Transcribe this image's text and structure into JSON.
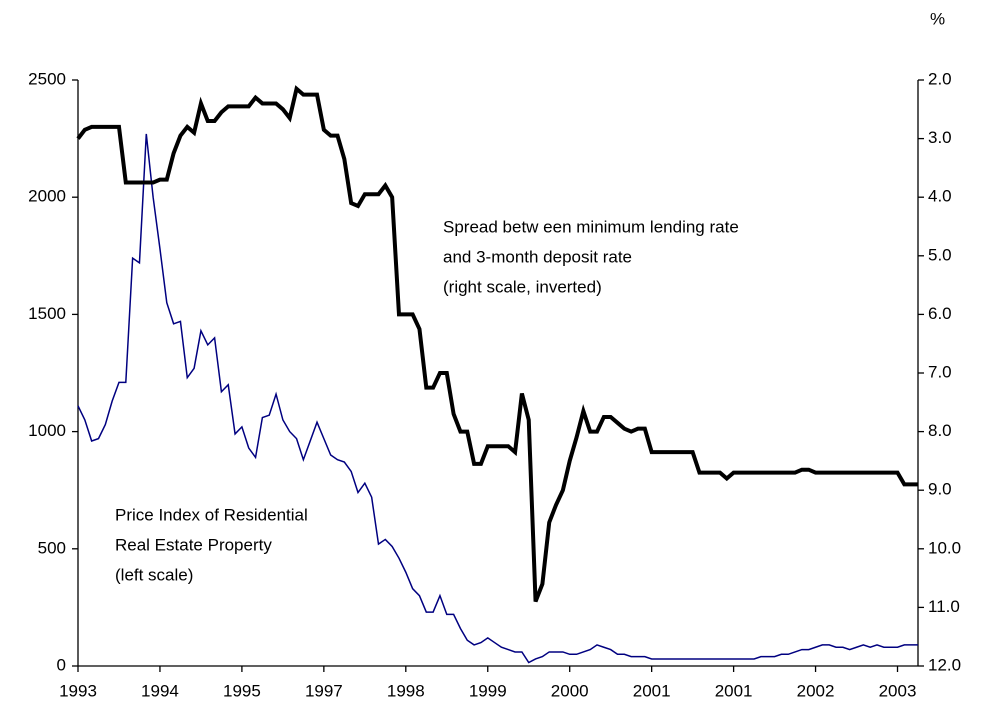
{
  "chart_data": {
    "type": "line",
    "y2_label": "%",
    "categories": [
      "1993",
      null,
      null,
      null,
      null,
      null,
      null,
      null,
      null,
      null,
      null,
      null,
      "1994",
      null,
      null,
      null,
      null,
      null,
      null,
      null,
      null,
      null,
      null,
      null,
      "1995",
      null,
      null,
      null,
      null,
      null,
      null,
      null,
      null,
      null,
      null,
      null,
      "1997",
      null,
      null,
      null,
      null,
      null,
      null,
      null,
      null,
      null,
      null,
      null,
      "1998",
      null,
      null,
      null,
      null,
      null,
      null,
      null,
      null,
      null,
      null,
      null,
      "1999",
      null,
      null,
      null,
      null,
      null,
      null,
      null,
      null,
      null,
      null,
      null,
      "2000",
      null,
      null,
      null,
      null,
      null,
      null,
      null,
      null,
      null,
      null,
      null,
      "2001",
      null,
      null,
      null,
      null,
      null,
      null,
      null,
      null,
      null,
      null,
      null,
      "2001",
      null,
      null,
      null,
      null,
      null,
      null,
      null,
      null,
      null,
      null,
      null,
      "2002",
      null,
      null,
      null,
      null,
      null,
      null,
      null,
      null,
      null,
      null,
      null,
      "2003",
      null,
      null,
      null
    ],
    "series": [
      {
        "name": "Price Index of Residential Real Estate Property (left scale)",
        "color": "#000080",
        "axis": "y",
        "values": [
          1110,
          1050,
          960,
          970,
          1030,
          1130,
          1210,
          1210,
          1740,
          1720,
          2270,
          2000,
          1780,
          1550,
          1460,
          1470,
          1230,
          1270,
          1430,
          1370,
          1400,
          1170,
          1200,
          990,
          1020,
          930,
          890,
          1060,
          1070,
          1160,
          1050,
          1000,
          970,
          880,
          960,
          1040,
          970,
          900,
          880,
          870,
          830,
          740,
          780,
          720,
          520,
          540,
          510,
          460,
          400,
          330,
          300,
          230,
          230,
          300,
          220,
          220,
          160,
          110,
          90,
          100,
          120,
          100,
          80,
          70,
          60,
          60,
          15,
          30,
          40,
          60,
          60,
          60,
          50,
          50,
          60,
          70,
          90,
          80,
          70,
          50,
          50,
          40,
          40,
          40,
          30,
          30,
          30,
          30,
          30,
          30,
          30,
          30,
          30,
          30,
          30,
          30,
          30,
          30,
          30,
          30,
          40,
          40,
          40,
          50,
          50,
          60,
          70,
          70,
          80,
          90,
          90,
          80,
          80,
          70,
          80,
          90,
          80,
          90,
          80,
          80,
          80,
          90,
          90,
          90
        ]
      },
      {
        "name": "Spread between minimum lending rate and 3-month deposit rate (right scale, inverted)",
        "color": "#000000",
        "axis": "y2",
        "values": [
          3.0,
          2.85,
          2.8,
          2.8,
          2.8,
          2.8,
          2.8,
          3.75,
          3.75,
          3.75,
          3.75,
          3.75,
          3.7,
          3.7,
          3.25,
          2.95,
          2.8,
          2.9,
          2.4,
          2.7,
          2.7,
          2.55,
          2.45,
          2.45,
          2.45,
          2.45,
          2.3,
          2.4,
          2.4,
          2.4,
          2.5,
          2.65,
          2.15,
          2.25,
          2.25,
          2.25,
          2.85,
          2.95,
          2.95,
          3.35,
          4.1,
          4.15,
          3.95,
          3.95,
          3.95,
          3.8,
          4.0,
          6.0,
          6.0,
          6.0,
          6.25,
          7.25,
          7.25,
          7.0,
          7.0,
          7.7,
          8.0,
          8.0,
          8.55,
          8.55,
          8.25,
          8.25,
          8.25,
          8.25,
          8.35,
          7.35,
          7.8,
          10.9,
          10.6,
          9.55,
          9.25,
          9.0,
          8.5,
          8.1,
          7.65,
          8.0,
          8.0,
          7.75,
          7.75,
          7.85,
          7.95,
          8.0,
          7.95,
          7.95,
          8.35,
          8.35,
          8.35,
          8.35,
          8.35,
          8.35,
          8.35,
          8.7,
          8.7,
          8.7,
          8.7,
          8.8,
          8.7,
          8.7,
          8.7,
          8.7,
          8.7,
          8.7,
          8.7,
          8.7,
          8.7,
          8.7,
          8.65,
          8.65,
          8.7,
          8.7,
          8.7,
          8.7,
          8.7,
          8.7,
          8.7,
          8.7,
          8.7,
          8.7,
          8.7,
          8.7,
          8.7,
          8.9,
          8.9,
          8.9
        ]
      }
    ],
    "annotations": [
      {
        "lines": [
          "Spread betw een minimum lending rate",
          "and 3-month deposit rate",
          "(right scale, inverted)"
        ]
      },
      {
        "lines": [
          "Price Index of Residential",
          "Real Estate Property",
          "(left scale)"
        ]
      }
    ],
    "ylim": [
      0,
      2500
    ],
    "yticks": [
      0,
      500,
      1000,
      1500,
      2000,
      2500
    ],
    "y2lim": [
      2,
      12
    ],
    "y2_inverted": true,
    "y2ticks": [
      {
        "value": 2,
        "label": "2.0"
      },
      {
        "value": 3,
        "label": "3.0"
      },
      {
        "value": 4,
        "label": "4.0"
      },
      {
        "value": 5,
        "label": "5.0"
      },
      {
        "value": 6,
        "label": "6.0"
      },
      {
        "value": 7,
        "label": "7.0"
      },
      {
        "value": 8,
        "label": "8.0"
      },
      {
        "value": 9,
        "label": "9.0"
      },
      {
        "value": 10,
        "label": "10.0"
      },
      {
        "value": 11,
        "label": "11.0"
      },
      {
        "value": 12,
        "label": "12.0"
      }
    ],
    "grid": false
  }
}
